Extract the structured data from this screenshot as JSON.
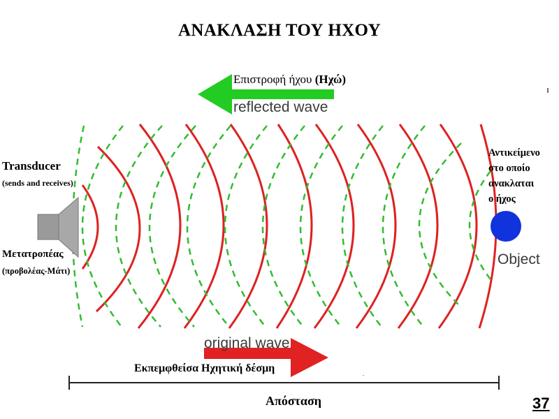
{
  "title": "ΑΝΑΚΛΑΣΗ ΤΟΥ ΗΧΟΥ",
  "reflected": {
    "greek_label_main": "Επιστροφή ήχου ",
    "greek_label_bold": "(Ηχώ)",
    "english_label": "reflected wave",
    "arrow_color": "#22cc22"
  },
  "transducer": {
    "label": "Transducer",
    "sublabel": "(sends and receives)",
    "greek_label": "Μετατροπέας",
    "greek_sublabel": "(προβολέας-Μάτι)"
  },
  "object": {
    "description_lines": [
      "Αντικείμενο",
      "στο οποίο",
      "ανακλαται",
      "ο ήχος"
    ],
    "label": "Object",
    "color": "#1133dd"
  },
  "original": {
    "english_label": "original wave",
    "greek_label": "Εκπεμφθείσα Ηχητική δέσμη",
    "arrow_color": "#e02222"
  },
  "distance_label": "Απόσταση",
  "page_number": "37",
  "colors": {
    "emitted_wave": "#dd2222",
    "reflected_wave": "#33bb33"
  }
}
